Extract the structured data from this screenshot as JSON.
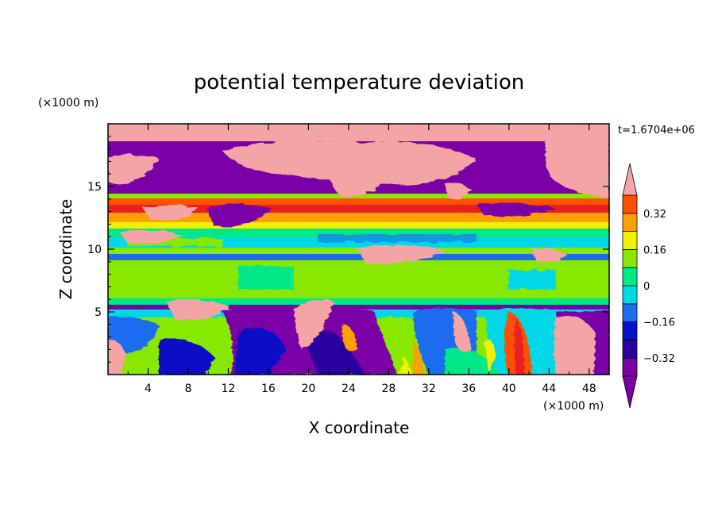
{
  "chart_data": {
    "type": "heatmap",
    "title": "potential temperature deviation",
    "xlabel": "X coordinate",
    "ylabel": "Z coordinate",
    "x_unit_label": "(×1000 m)",
    "y_unit_label": "(×1000 m)",
    "time_label": "t=1.6704e+06",
    "xlim": [
      0,
      50
    ],
    "ylim": [
      0,
      20
    ],
    "x_ticks": [
      4,
      8,
      12,
      16,
      20,
      24,
      28,
      32,
      36,
      40,
      44,
      48
    ],
    "y_ticks": [
      5,
      10,
      15
    ],
    "colorbar": {
      "levels": [
        -0.4,
        -0.32,
        -0.24,
        -0.16,
        -0.08,
        0,
        0.08,
        0.16,
        0.24,
        0.32,
        0.4
      ],
      "tick_labels": [
        {
          "value": 0.32,
          "label": "0.32"
        },
        {
          "value": 0.16,
          "label": "0.16"
        },
        {
          "value": 0,
          "label": "0"
        },
        {
          "value": -0.16,
          "label": "−0.16"
        },
        {
          "value": -0.32,
          "label": "−0.32"
        }
      ],
      "colors": [
        "#7b00a8",
        "#2a00a0",
        "#0a10c8",
        "#1e6cf0",
        "#00d8e8",
        "#00e888",
        "#88e800",
        "#f0f000",
        "#ffa000",
        "#ff5000",
        "#e82020",
        "#f4a4a4"
      ]
    },
    "bands": [
      {
        "z": [
          0,
          5.5
        ],
        "note": "convective cells"
      },
      {
        "z": [
          5.5,
          6.2
        ],
        "value": -0.08
      },
      {
        "z": [
          6.2,
          9.3
        ],
        "value": 0.04
      },
      {
        "z": [
          9.3,
          10.2
        ],
        "value": -0.12
      },
      {
        "z": [
          10.2,
          11.5
        ],
        "value": 0.04
      },
      {
        "z": [
          11.5,
          13.8
        ],
        "value": 0.3
      },
      {
        "z": [
          13.8,
          20
        ],
        "value": -0.4
      }
    ]
  }
}
